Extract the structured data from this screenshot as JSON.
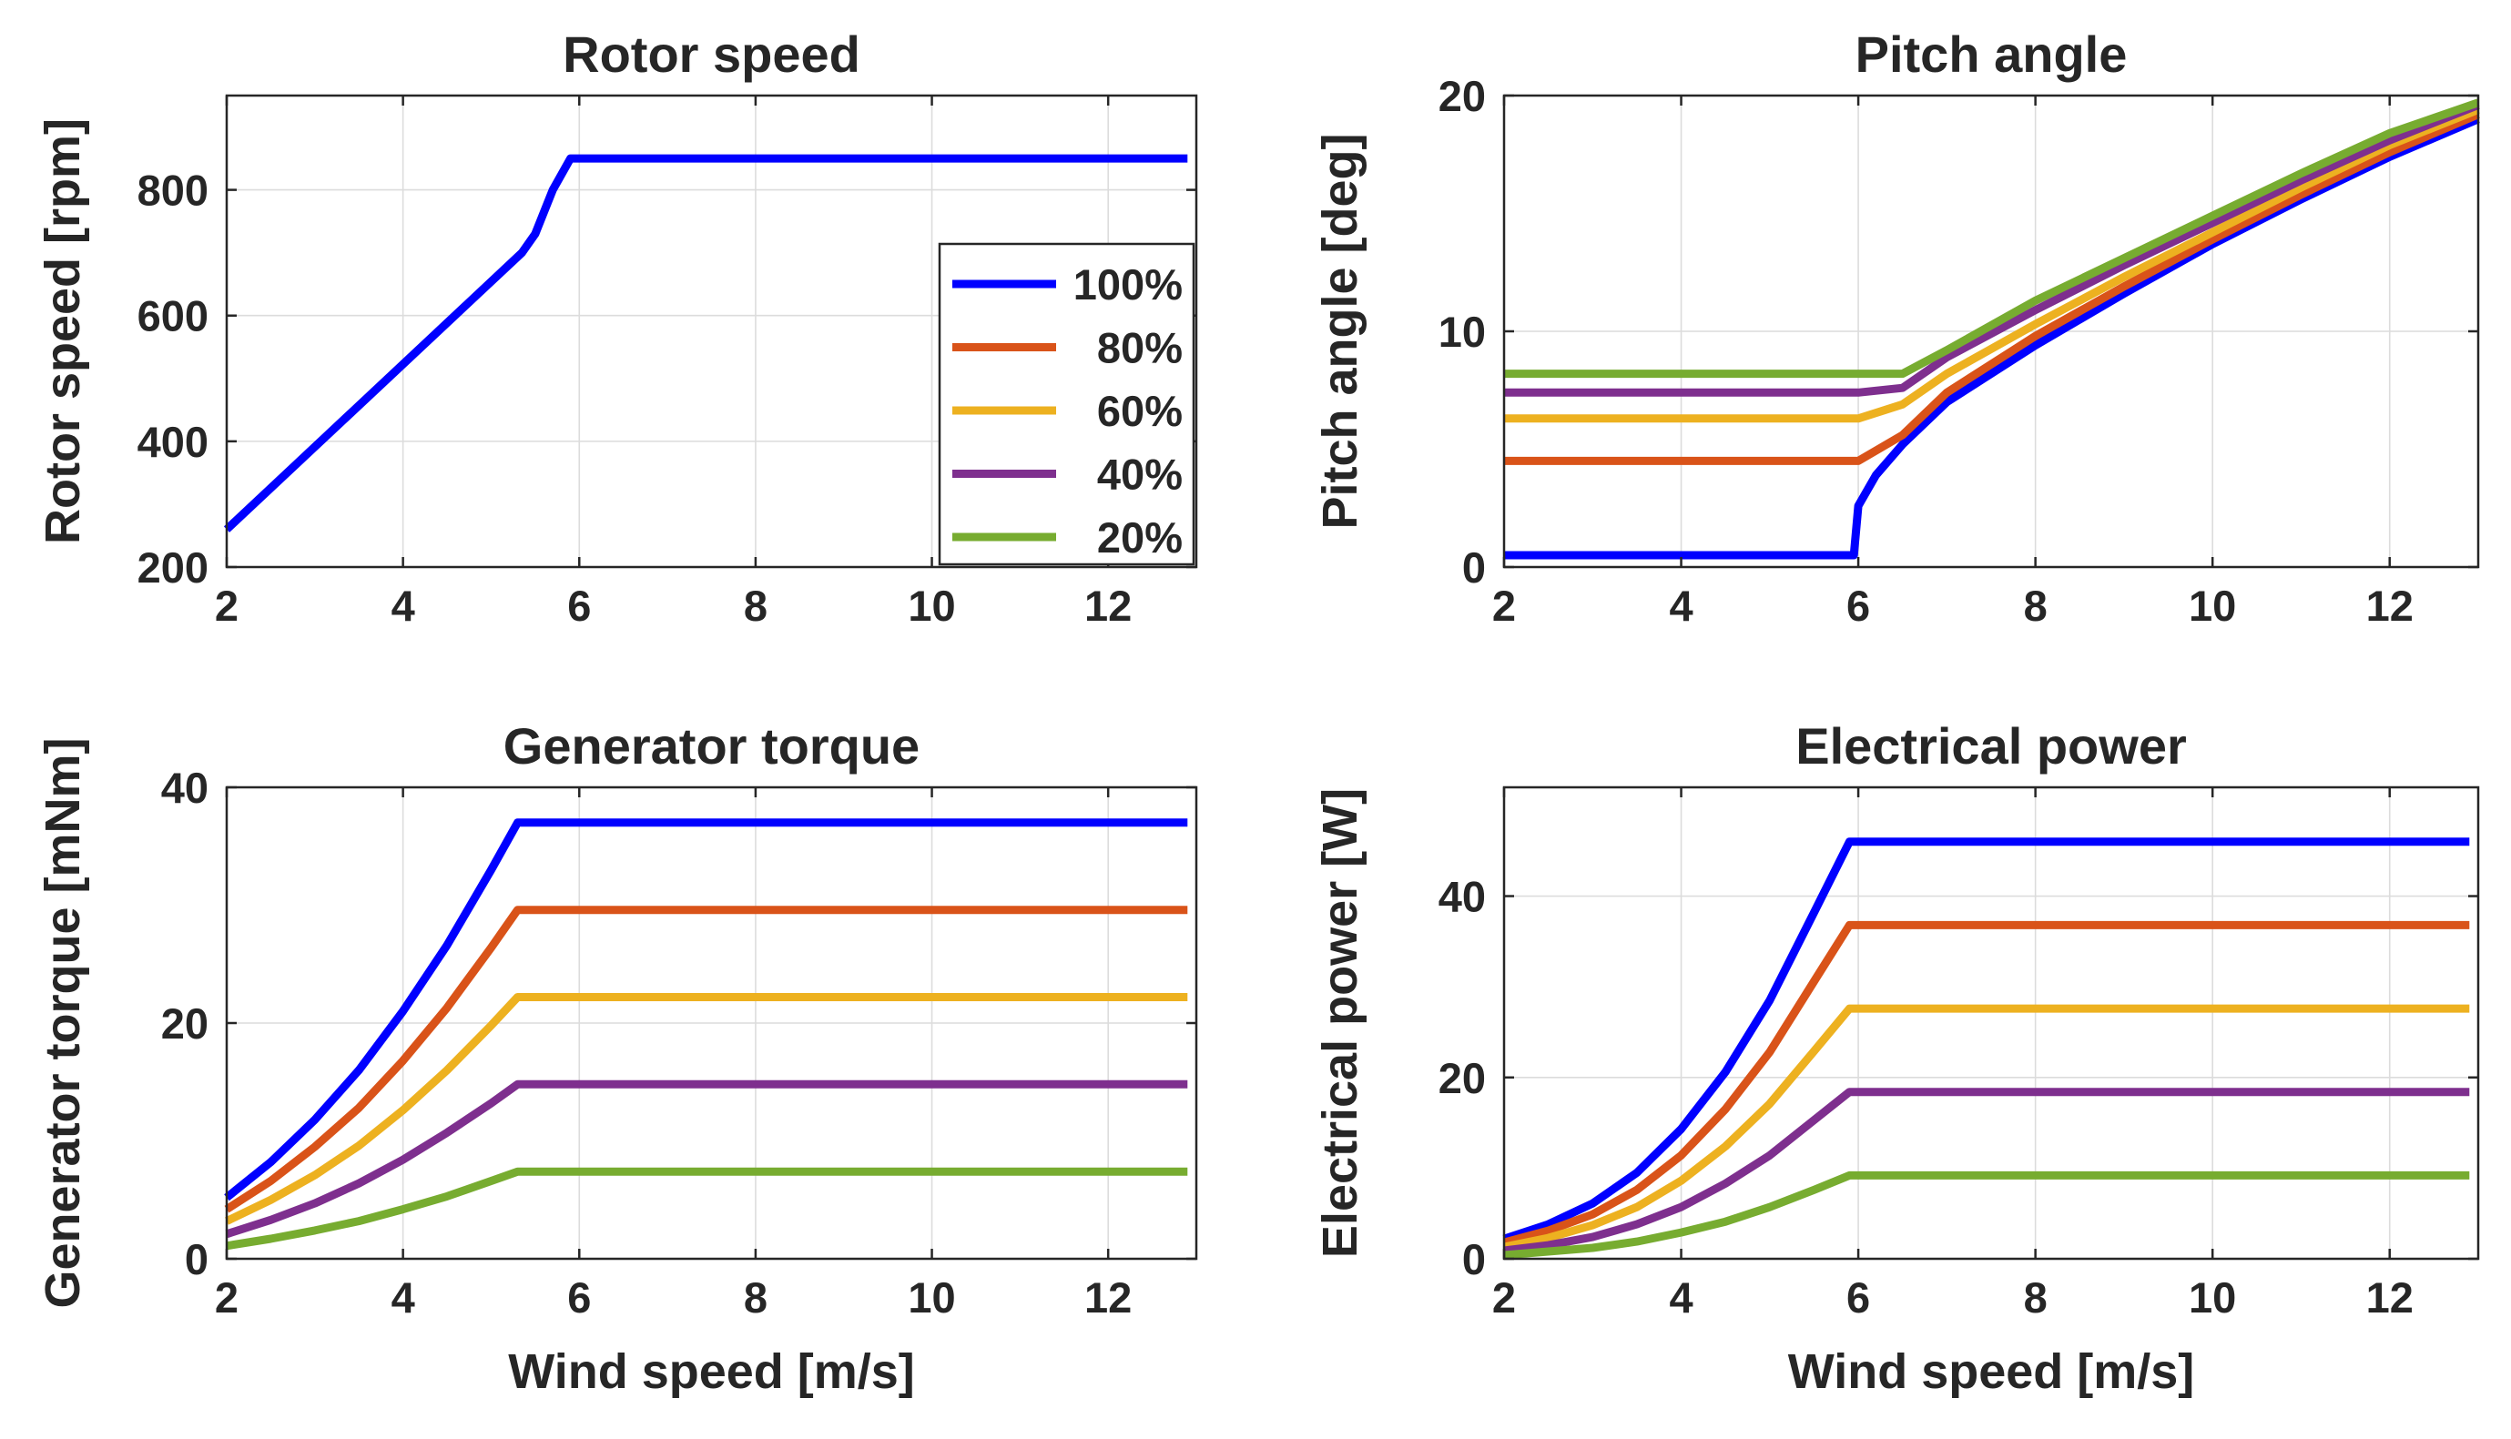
{
  "chart_data": [
    {
      "type": "line",
      "title": "Rotor speed",
      "xlabel": "",
      "ylabel": "Rotor speed [rpm]",
      "xlim": [
        2,
        13
      ],
      "ylim": [
        200,
        950
      ],
      "xticks": [
        2,
        4,
        6,
        8,
        10,
        12
      ],
      "yticks": [
        200,
        400,
        600,
        800
      ],
      "grid": true,
      "legend": {
        "location": "bottom-right",
        "entries": [
          {
            "label": "100%",
            "color": "#0000ff"
          },
          {
            "label": "80%",
            "color": "#d95319"
          },
          {
            "label": "60%",
            "color": "#edb120"
          },
          {
            "label": "40%",
            "color": "#7e2f8e"
          },
          {
            "label": "20%",
            "color": "#77ac30"
          }
        ]
      },
      "series": [
        {
          "name": "100%",
          "color": "#0000ff",
          "x": [
            2,
            5.35,
            5.5,
            5.7,
            5.9,
            12.9
          ],
          "y": [
            260,
            700,
            730,
            800,
            850,
            850
          ]
        }
      ]
    },
    {
      "type": "line",
      "title": "Pitch angle",
      "xlabel": "",
      "ylabel": "Pitch angle [deg]",
      "xlim": [
        2,
        13
      ],
      "ylim": [
        0,
        20
      ],
      "xticks": [
        2,
        4,
        6,
        8,
        10,
        12
      ],
      "yticks": [
        0,
        10,
        20
      ],
      "grid": true,
      "series": [
        {
          "name": "100%",
          "color": "#0000ff",
          "x": [
            2,
            5.95,
            6.0,
            6.2,
            6.5,
            7,
            8,
            9,
            10,
            11,
            12,
            13
          ],
          "y": [
            0.5,
            0.5,
            2.6,
            3.9,
            5.2,
            7.0,
            9.4,
            11.6,
            13.7,
            15.6,
            17.4,
            19.0
          ]
        },
        {
          "name": "80%",
          "color": "#d95319",
          "x": [
            2,
            6.0,
            6.5,
            7,
            8,
            9,
            10,
            11,
            12,
            13
          ],
          "y": [
            4.5,
            4.5,
            5.6,
            7.4,
            9.8,
            11.9,
            13.9,
            15.8,
            17.6,
            19.2
          ]
        },
        {
          "name": "60%",
          "color": "#edb120",
          "x": [
            2,
            6.0,
            6.5,
            7,
            8,
            9,
            10,
            11,
            12,
            13
          ],
          "y": [
            6.3,
            6.3,
            6.9,
            8.2,
            10.3,
            12.3,
            14.2,
            16.1,
            17.9,
            19.4
          ]
        },
        {
          "name": "40%",
          "color": "#7e2f8e",
          "x": [
            2,
            6.0,
            6.5,
            7,
            8,
            9,
            10,
            11,
            12,
            13
          ],
          "y": [
            7.4,
            7.4,
            7.6,
            8.9,
            10.9,
            12.8,
            14.6,
            16.4,
            18.1,
            19.6
          ]
        },
        {
          "name": "20%",
          "color": "#77ac30",
          "x": [
            2,
            6.5,
            7,
            8,
            9,
            10,
            11,
            12,
            13
          ],
          "y": [
            8.2,
            8.2,
            9.2,
            11.3,
            13.1,
            14.9,
            16.7,
            18.4,
            19.7
          ]
        }
      ]
    },
    {
      "type": "line",
      "title": "Generator torque",
      "xlabel": "Wind speed [m/s]",
      "ylabel": "Generator torque [mNm]",
      "xlim": [
        2,
        13
      ],
      "ylim": [
        0,
        40
      ],
      "xticks": [
        2,
        4,
        6,
        8,
        10,
        12
      ],
      "yticks": [
        0,
        20,
        40
      ],
      "grid": true,
      "series": [
        {
          "name": "100%",
          "color": "#0000ff",
          "x": [
            2,
            2.5,
            3,
            3.5,
            4,
            4.5,
            5,
            5.3,
            12.9
          ],
          "y": [
            5.2,
            8.2,
            11.8,
            16.0,
            21.0,
            26.6,
            33.0,
            37.0,
            37.0
          ]
        },
        {
          "name": "80%",
          "color": "#d95319",
          "x": [
            2,
            2.5,
            3,
            3.5,
            4,
            4.5,
            5,
            5.3,
            12.9
          ],
          "y": [
            4.2,
            6.6,
            9.5,
            12.8,
            16.8,
            21.3,
            26.4,
            29.6,
            29.6
          ]
        },
        {
          "name": "60%",
          "color": "#edb120",
          "x": [
            2,
            2.5,
            3,
            3.5,
            4,
            4.5,
            5,
            5.3,
            12.9
          ],
          "y": [
            3.2,
            5.0,
            7.1,
            9.6,
            12.6,
            16.0,
            19.8,
            22.2,
            22.2
          ]
        },
        {
          "name": "40%",
          "color": "#7e2f8e",
          "x": [
            2,
            2.5,
            3,
            3.5,
            4,
            4.5,
            5,
            5.3,
            12.9
          ],
          "y": [
            2.1,
            3.3,
            4.7,
            6.4,
            8.4,
            10.7,
            13.2,
            14.8,
            14.8
          ]
        },
        {
          "name": "20%",
          "color": "#77ac30",
          "x": [
            2,
            2.5,
            3,
            3.5,
            4,
            4.5,
            5,
            5.3,
            12.9
          ],
          "y": [
            1.1,
            1.7,
            2.4,
            3.2,
            4.2,
            5.3,
            6.6,
            7.4,
            7.4
          ]
        }
      ]
    },
    {
      "type": "line",
      "title": "Electrical power",
      "xlabel": "Wind speed [m/s]",
      "ylabel": "Electrical power [W]",
      "xlim": [
        2,
        13
      ],
      "ylim": [
        0,
        52
      ],
      "xticks": [
        2,
        4,
        6,
        8,
        10,
        12
      ],
      "yticks": [
        0,
        20,
        40
      ],
      "grid": true,
      "series": [
        {
          "name": "100%",
          "color": "#0000ff",
          "x": [
            2,
            2.5,
            3,
            3.5,
            4,
            4.5,
            5,
            5.5,
            5.9,
            12.9
          ],
          "y": [
            2.2,
            3.8,
            6.1,
            9.5,
            14.3,
            20.6,
            28.5,
            38.2,
            46.0,
            46.0
          ]
        },
        {
          "name": "80%",
          "color": "#d95319",
          "x": [
            2,
            2.5,
            3,
            3.5,
            4,
            4.5,
            5,
            5.5,
            5.9,
            12.9
          ],
          "y": [
            1.8,
            3.1,
            4.9,
            7.6,
            11.4,
            16.5,
            22.8,
            30.6,
            36.8,
            36.8
          ]
        },
        {
          "name": "60%",
          "color": "#edb120",
          "x": [
            2,
            2.5,
            3,
            3.5,
            4,
            4.5,
            5,
            5.5,
            5.9,
            12.9
          ],
          "y": [
            1.3,
            2.3,
            3.7,
            5.7,
            8.6,
            12.4,
            17.1,
            22.9,
            27.6,
            27.6
          ]
        },
        {
          "name": "40%",
          "color": "#7e2f8e",
          "x": [
            2,
            2.5,
            3,
            3.5,
            4,
            4.5,
            5,
            5.5,
            5.9,
            12.9
          ],
          "y": [
            0.9,
            1.5,
            2.4,
            3.8,
            5.7,
            8.3,
            11.4,
            15.3,
            18.4,
            18.4
          ]
        },
        {
          "name": "20%",
          "color": "#77ac30",
          "x": [
            2,
            2.5,
            3,
            3.5,
            4,
            4.5,
            5,
            5.5,
            5.9,
            12.9
          ],
          "y": [
            0.4,
            0.8,
            1.2,
            1.9,
            2.9,
            4.1,
            5.7,
            7.6,
            9.2,
            9.2
          ]
        }
      ]
    }
  ]
}
